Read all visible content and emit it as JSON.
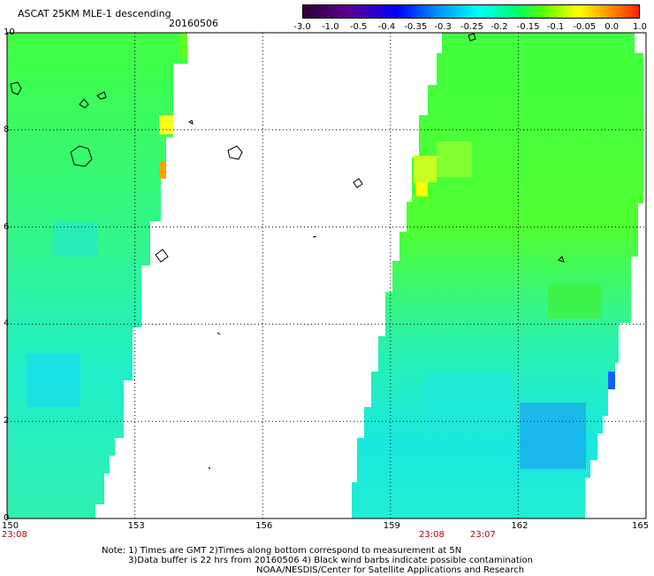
{
  "header": {
    "title": "ASCAT 25KM MLE-1 descending",
    "date": "20160506"
  },
  "colorbar": {
    "labels": [
      "-3.0",
      "-1.0",
      "-0.5",
      "-0.4",
      "-0.35",
      "-0.3",
      "-0.25",
      "-0.2",
      "-0.15",
      "-0.1",
      "-0.05",
      "0.0",
      "1.0"
    ],
    "colors": [
      "#2a0033",
      "#5a0090",
      "#0000ff",
      "#0090ff",
      "#00ffff",
      "#00ff60",
      "#60ff00",
      "#ffff00",
      "#ffa000",
      "#ff2000"
    ]
  },
  "axes": {
    "lon_labels": [
      "150",
      "153",
      "156",
      "159",
      "162",
      "165"
    ],
    "lat_labels": [
      "10",
      "8",
      "6",
      "4",
      "2",
      "0"
    ],
    "lon_range": [
      150,
      165
    ],
    "lat_range": [
      0,
      10
    ]
  },
  "pass_times": {
    "left": "23:08",
    "right_a": "23:08",
    "right_b": "23:07"
  },
  "notes": {
    "line1": "Note: 1) Times are GMT 2)Times along bottom correspond to measurement at 5N",
    "line2": "3)Data buffer is 22 hrs from 20160506 4) Black wind barbs indicate possible contamination",
    "line3": "NOAA/NESDIS/Center for Satellite Applications and Research"
  },
  "map": {
    "land_color": "#000000",
    "background_color": "#ffffff",
    "grid_style": "dotted"
  }
}
